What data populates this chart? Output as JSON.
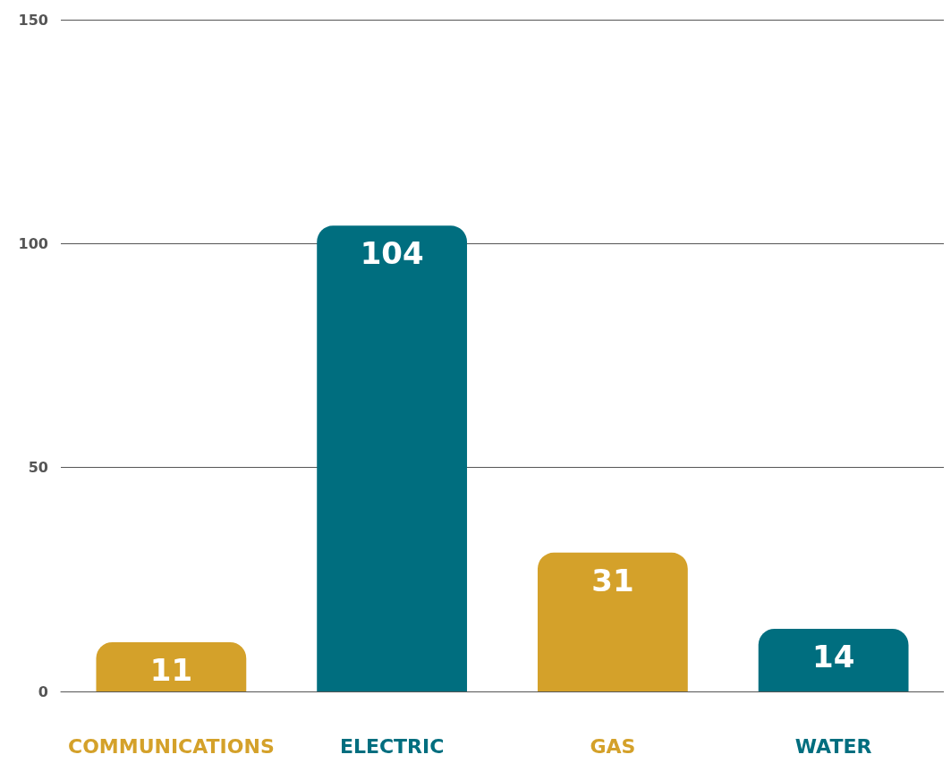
{
  "chart_data": {
    "type": "bar",
    "categories": [
      "COMMUNICATIONS",
      "ELECTRIC",
      "GAS",
      "WATER"
    ],
    "values": [
      11,
      104,
      31,
      14
    ],
    "colors": [
      "#d4a12a",
      "#006e7f",
      "#d4a12a",
      "#006e7f"
    ],
    "ylim": [
      0,
      150
    ],
    "yticks": [
      0,
      50,
      100,
      150
    ],
    "grid": "y",
    "data_labels": true
  }
}
